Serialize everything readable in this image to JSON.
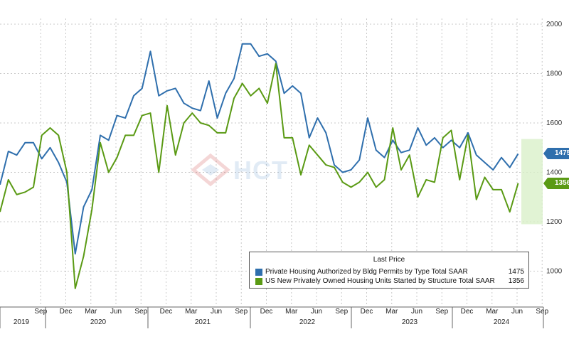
{
  "chart_data": {
    "type": "line",
    "ylim": [
      850,
      2030
    ],
    "yticks": [
      1000,
      1200,
      1400,
      1600,
      1800,
      2000
    ],
    "x": [
      "2019-06",
      "2019-07",
      "2019-08",
      "2019-09",
      "2019-10",
      "2019-11",
      "2019-12",
      "2020-01",
      "2020-02",
      "2020-03",
      "2020-04",
      "2020-05",
      "2020-06",
      "2020-07",
      "2020-08",
      "2020-09",
      "2020-10",
      "2020-11",
      "2020-12",
      "2021-01",
      "2021-02",
      "2021-03",
      "2021-04",
      "2021-05",
      "2021-06",
      "2021-07",
      "2021-08",
      "2021-09",
      "2021-10",
      "2021-11",
      "2021-12",
      "2022-01",
      "2022-02",
      "2022-03",
      "2022-04",
      "2022-05",
      "2022-06",
      "2022-07",
      "2022-08",
      "2022-09",
      "2022-10",
      "2022-11",
      "2022-12",
      "2023-01",
      "2023-02",
      "2023-03",
      "2023-04",
      "2023-05",
      "2023-06",
      "2023-07",
      "2023-08",
      "2023-09",
      "2023-10",
      "2023-11",
      "2023-12",
      "2024-01",
      "2024-02",
      "2024-03",
      "2024-04",
      "2024-05",
      "2024-06",
      "2024-07",
      "2024-08"
    ],
    "series": [
      {
        "name": "Private Housing Authorized by Bldg Permits by Type Total SAAR",
        "color": "#2f6fad",
        "values": [
          1350,
          1485,
          1470,
          1520,
          1520,
          1455,
          1500,
          1440,
          1360,
          1070,
          1260,
          1330,
          1550,
          1530,
          1630,
          1620,
          1710,
          1740,
          1890,
          1710,
          1730,
          1740,
          1680,
          1660,
          1650,
          1770,
          1620,
          1720,
          1780,
          1920,
          1920,
          1870,
          1880,
          1850,
          1720,
          1750,
          1720,
          1540,
          1620,
          1560,
          1430,
          1400,
          1410,
          1450,
          1620,
          1490,
          1460,
          1530,
          1480,
          1490,
          1580,
          1510,
          1540,
          1500,
          1530,
          1500,
          1560,
          1470,
          1440,
          1410,
          1460,
          1420,
          1475
        ]
      },
      {
        "name": "US New Privately Owned Housing Units Started by Structure Total SAAR",
        "color": "#5a9a14",
        "values": [
          1240,
          1370,
          1310,
          1320,
          1340,
          1550,
          1580,
          1550,
          1400,
          930,
          1060,
          1250,
          1520,
          1400,
          1460,
          1550,
          1550,
          1630,
          1640,
          1400,
          1670,
          1470,
          1600,
          1640,
          1600,
          1590,
          1560,
          1560,
          1700,
          1760,
          1710,
          1740,
          1680,
          1840,
          1540,
          1540,
          1390,
          1510,
          1470,
          1430,
          1420,
          1360,
          1340,
          1360,
          1400,
          1340,
          1370,
          1580,
          1410,
          1470,
          1300,
          1370,
          1360,
          1540,
          1570,
          1370,
          1550,
          1290,
          1380,
          1330,
          1330,
          1240,
          1356
        ]
      }
    ],
    "xaxis_months": [
      "Sep",
      "Dec",
      "Mar",
      "Jun",
      "Sep",
      "Dec",
      "Mar",
      "Jun",
      "Sep",
      "Dec",
      "Mar",
      "Jun",
      "Sep",
      "Dec",
      "Mar",
      "Jun",
      "Sep",
      "Dec",
      "Mar",
      "Jun",
      "Sep"
    ],
    "xaxis_years": [
      "2019",
      "2020",
      "2021",
      "2022",
      "2023",
      "2024"
    ],
    "legend_title": "Last Price",
    "last_values": [
      "1475",
      "1356"
    ],
    "grid": true,
    "legend_placement": "bottom-right"
  }
}
